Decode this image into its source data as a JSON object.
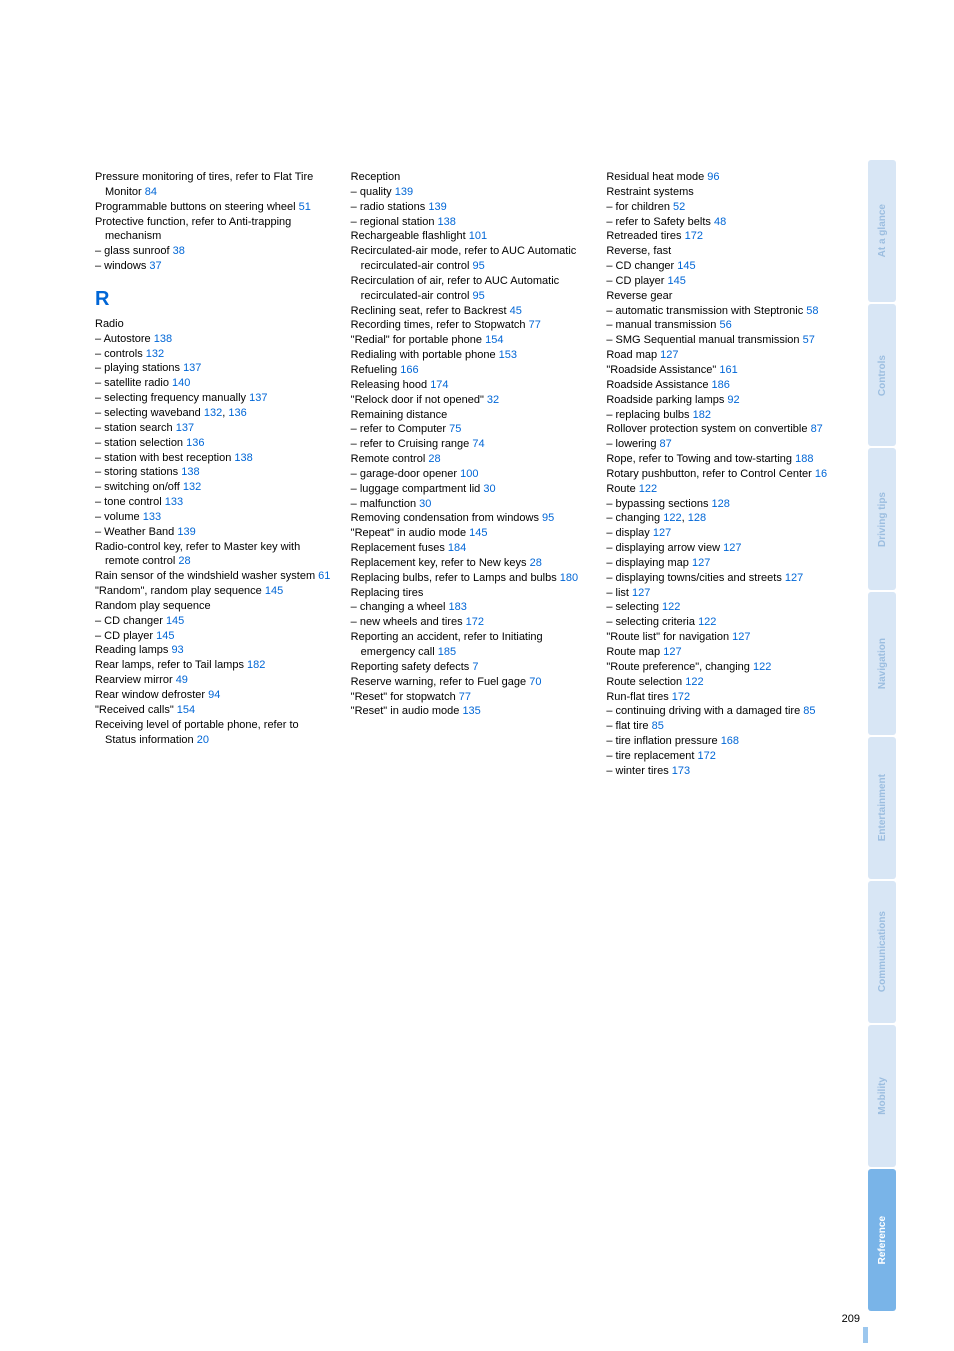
{
  "colors": {
    "link": "#0066d6",
    "tab_light_bg": "#d8e6f5",
    "tab_light_text": "#9cbee0",
    "tab_active_bg": "#79b4e8",
    "tab_active_text": "#ffffff"
  },
  "page_number": "209",
  "tabs": [
    {
      "label": "At a glance",
      "active": false
    },
    {
      "label": "Controls",
      "active": false
    },
    {
      "label": "Driving tips",
      "active": false
    },
    {
      "label": "Navigation",
      "active": false
    },
    {
      "label": "Entertainment",
      "active": false
    },
    {
      "label": "Communications",
      "active": false
    },
    {
      "label": "Mobility",
      "active": false
    },
    {
      "label": "Reference",
      "active": true
    }
  ],
  "col1": [
    {
      "t": "Pressure monitoring of tires, refer to Flat Tire Monitor ",
      "p": "84"
    },
    {
      "t": "Programmable buttons on steering wheel ",
      "p": "51"
    },
    {
      "t": "Protective function, refer to Anti-trapping mechanism"
    },
    {
      "t": "– glass sunroof ",
      "p": "38"
    },
    {
      "t": "– windows ",
      "p": "37"
    },
    {
      "letter": "R"
    },
    {
      "t": "Radio"
    },
    {
      "t": "– Autostore ",
      "p": "138"
    },
    {
      "t": "– controls ",
      "p": "132"
    },
    {
      "t": "– playing stations ",
      "p": "137"
    },
    {
      "t": "– satellite radio ",
      "p": "140"
    },
    {
      "t": "– selecting frequency manually ",
      "p": "137"
    },
    {
      "t": "– selecting waveband ",
      "p": "132",
      "p2": "136"
    },
    {
      "t": "– station search ",
      "p": "137"
    },
    {
      "t": "– station selection ",
      "p": "136"
    },
    {
      "t": "– station with best reception ",
      "p": "138"
    },
    {
      "t": "– storing stations ",
      "p": "138"
    },
    {
      "t": "– switching on/off ",
      "p": "132"
    },
    {
      "t": "– tone control ",
      "p": "133"
    },
    {
      "t": "– volume ",
      "p": "133"
    },
    {
      "t": "– Weather Band ",
      "p": "139"
    },
    {
      "t": "Radio-control key, refer to Master key with remote control ",
      "p": "28"
    },
    {
      "t": "Rain sensor of the windshield washer system ",
      "p": "61"
    },
    {
      "t": "\"Random\", random play sequence ",
      "p": "145"
    },
    {
      "t": "Random play sequence"
    },
    {
      "t": "– CD changer ",
      "p": "145"
    },
    {
      "t": "– CD player ",
      "p": "145"
    },
    {
      "t": "Reading lamps ",
      "p": "93"
    },
    {
      "t": "Rear lamps, refer to Tail lamps ",
      "p": "182"
    },
    {
      "t": "Rearview mirror ",
      "p": "49"
    },
    {
      "t": "Rear window defroster ",
      "p": "94"
    },
    {
      "t": "\"Received calls\" ",
      "p": "154"
    },
    {
      "t": "Receiving level of portable phone, refer to Status information ",
      "p": "20"
    }
  ],
  "col2": [
    {
      "t": "Reception"
    },
    {
      "t": "– quality ",
      "p": "139"
    },
    {
      "t": "– radio stations ",
      "p": "139"
    },
    {
      "t": "– regional station ",
      "p": "138"
    },
    {
      "t": "Rechargeable flashlight ",
      "p": "101"
    },
    {
      "t": "Recirculated-air mode, refer to AUC Automatic recirculated-air control ",
      "p": "95"
    },
    {
      "t": "Recirculation of air, refer to AUC Automatic recirculated-air control ",
      "p": "95"
    },
    {
      "t": "Reclining seat, refer to Backrest ",
      "p": "45"
    },
    {
      "t": "Recording times, refer to Stopwatch ",
      "p": "77"
    },
    {
      "t": "\"Redial\" for portable phone ",
      "p": "154"
    },
    {
      "t": "Redialing with portable phone ",
      "p": "153"
    },
    {
      "t": "Refueling ",
      "p": "166"
    },
    {
      "t": "Releasing hood ",
      "p": "174"
    },
    {
      "t": "\"Relock door if not opened\" ",
      "p": "32"
    },
    {
      "t": "Remaining distance"
    },
    {
      "t": "– refer to Computer ",
      "p": "75"
    },
    {
      "t": "– refer to Cruising range ",
      "p": "74"
    },
    {
      "t": "Remote control ",
      "p": "28"
    },
    {
      "t": "– garage-door opener ",
      "p": "100"
    },
    {
      "t": "– luggage compartment lid ",
      "p": "30"
    },
    {
      "t": "– malfunction ",
      "p": "30"
    },
    {
      "t": "Removing condensation from windows ",
      "p": "95"
    },
    {
      "t": "\"Repeat\" in audio mode ",
      "p": "145"
    },
    {
      "t": "Replacement fuses ",
      "p": "184"
    },
    {
      "t": "Replacement key, refer to New keys ",
      "p": "28"
    },
    {
      "t": "Replacing bulbs, refer to Lamps and bulbs ",
      "p": "180"
    },
    {
      "t": "Replacing tires"
    },
    {
      "t": "– changing a wheel ",
      "p": "183"
    },
    {
      "t": "– new wheels and tires ",
      "p": "172"
    },
    {
      "t": "Reporting an accident, refer to Initiating emergency call ",
      "p": "185"
    },
    {
      "t": "Reporting safety defects ",
      "p": "7"
    },
    {
      "t": "Reserve warning, refer to Fuel gage ",
      "p": "70"
    },
    {
      "t": "\"Reset\" for stopwatch ",
      "p": "77"
    },
    {
      "t": "\"Reset\" in audio mode ",
      "p": "135"
    }
  ],
  "col3": [
    {
      "t": "Residual heat mode ",
      "p": "96"
    },
    {
      "t": "Restraint systems"
    },
    {
      "t": "– for children ",
      "p": "52"
    },
    {
      "t": "– refer to Safety belts ",
      "p": "48"
    },
    {
      "t": "Retreaded tires ",
      "p": "172"
    },
    {
      "t": "Reverse, fast"
    },
    {
      "t": "– CD changer ",
      "p": "145"
    },
    {
      "t": "– CD player ",
      "p": "145"
    },
    {
      "t": "Reverse gear"
    },
    {
      "t": "– automatic transmission with Steptronic ",
      "p": "58"
    },
    {
      "t": "– manual transmission ",
      "p": "56"
    },
    {
      "t": "– SMG Sequential manual transmission ",
      "p": "57"
    },
    {
      "t": "Road map ",
      "p": "127"
    },
    {
      "t": "\"Roadside Assistance\" ",
      "p": "161"
    },
    {
      "t": "Roadside Assistance ",
      "p": "186"
    },
    {
      "t": "Roadside parking lamps ",
      "p": "92"
    },
    {
      "t": "– replacing bulbs ",
      "p": "182"
    },
    {
      "t": "Rollover protection system on convertible ",
      "p": "87"
    },
    {
      "t": "– lowering ",
      "p": "87"
    },
    {
      "t": "Rope, refer to Towing and tow-starting ",
      "p": "188"
    },
    {
      "t": "Rotary pushbutton, refer to Control Center ",
      "p": "16"
    },
    {
      "t": "Route ",
      "p": "122"
    },
    {
      "t": "– bypassing sections ",
      "p": "128"
    },
    {
      "t": "– changing ",
      "p": "122",
      "p2": "128"
    },
    {
      "t": "– display ",
      "p": "127"
    },
    {
      "t": "– displaying arrow view ",
      "p": "127"
    },
    {
      "t": "– displaying map ",
      "p": "127"
    },
    {
      "t": "– displaying towns/cities and streets ",
      "p": "127"
    },
    {
      "t": "– list ",
      "p": "127"
    },
    {
      "t": "– selecting ",
      "p": "122"
    },
    {
      "t": "– selecting criteria ",
      "p": "122"
    },
    {
      "t": "\"Route list\" for navigation ",
      "p": "127"
    },
    {
      "t": "Route map ",
      "p": "127"
    },
    {
      "t": "\"Route preference\", changing ",
      "p": "122"
    },
    {
      "t": "Route selection ",
      "p": "122"
    },
    {
      "t": "Run-flat tires ",
      "p": "172"
    },
    {
      "t": "– continuing driving with a damaged tire ",
      "p": "85"
    },
    {
      "t": "– flat tire ",
      "p": "85"
    },
    {
      "t": "– tire inflation pressure ",
      "p": "168"
    },
    {
      "t": "– tire replacement ",
      "p": "172"
    },
    {
      "t": "– winter tires ",
      "p": "173"
    }
  ]
}
